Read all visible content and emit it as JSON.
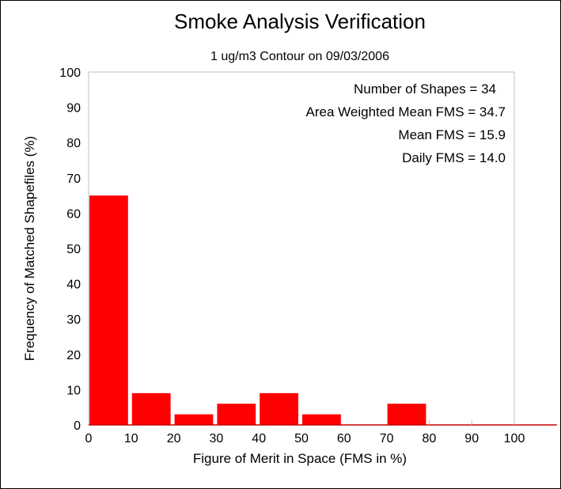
{
  "chart_data": {
    "type": "bar",
    "title": "Smoke Analysis Verification",
    "subtitle": "1 ug/m3 Contour on 09/03/2006",
    "xlabel": "Figure of Merit in Space (FMS in %)",
    "ylabel": "Frequency of Matched Shapefiles (%)",
    "x_bins": [
      [
        0,
        10
      ],
      [
        10,
        20
      ],
      [
        20,
        30
      ],
      [
        30,
        40
      ],
      [
        40,
        50
      ],
      [
        50,
        60
      ],
      [
        60,
        70
      ],
      [
        70,
        80
      ],
      [
        80,
        90
      ],
      [
        90,
        100
      ]
    ],
    "values": [
      65,
      9,
      3,
      6,
      9,
      3,
      0,
      6,
      0,
      0
    ],
    "xlim": [
      0,
      110
    ],
    "ylim": [
      0,
      100
    ],
    "x_ticks": [
      "0",
      "10",
      "20",
      "30",
      "40",
      "50",
      "60",
      "70",
      "80",
      "90",
      "100"
    ],
    "y_ticks": [
      "0",
      "10",
      "20",
      "30",
      "40",
      "50",
      "60",
      "70",
      "80",
      "90",
      "100"
    ],
    "bar_color": "#ff0000",
    "grid": false,
    "annotations": [
      "Number of Shapes = 34",
      "Area Weighted Mean FMS = 34.7",
      "Mean FMS = 15.9",
      "Daily FMS = 14.0"
    ]
  }
}
